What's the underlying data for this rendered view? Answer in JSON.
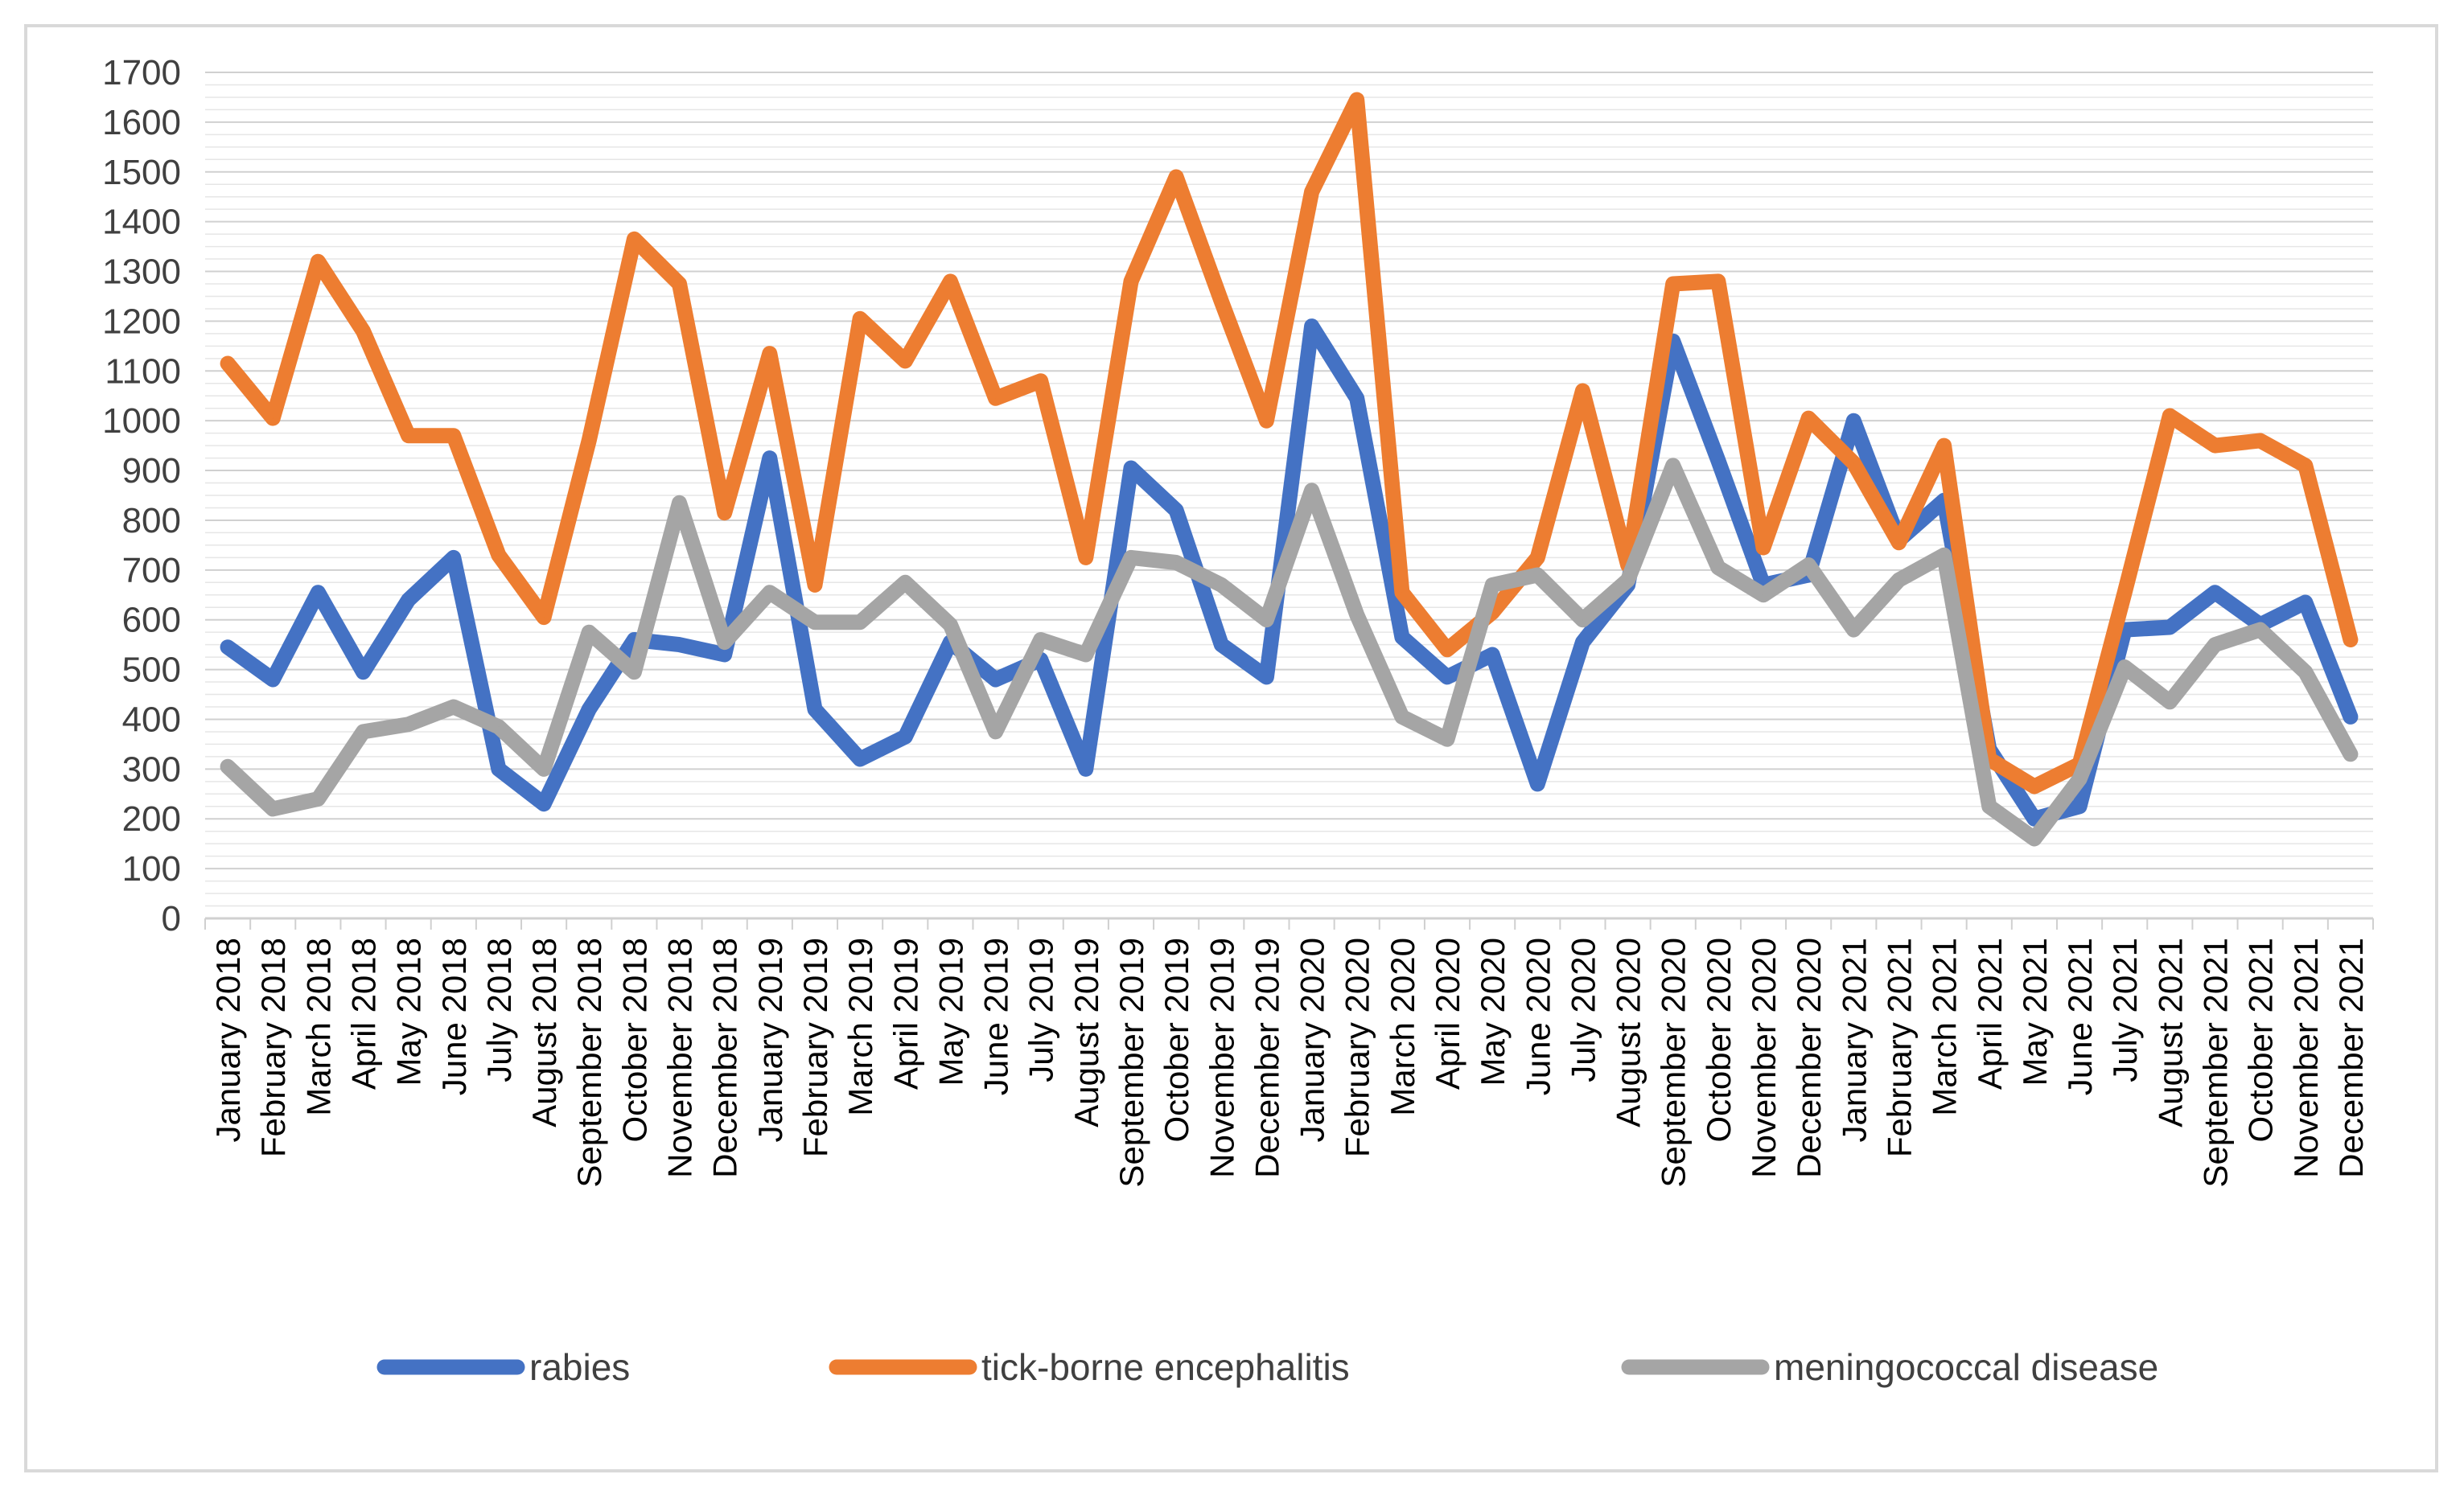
{
  "chart_data": {
    "type": "line",
    "title": "",
    "xlabel": "",
    "ylabel": "",
    "ylim": [
      0,
      1700
    ],
    "ytick_step": 100,
    "minor_gridlines_per_step": 4,
    "legend_position": "bottom",
    "categories": [
      "January 2018",
      "February 2018",
      "March 2018",
      "April 2018",
      "May 2018",
      "June 2018",
      "July 2018",
      "August 2018",
      "September 2018",
      "October 2018",
      "November 2018",
      "December 2018",
      "January 2019",
      "February 2019",
      "March 2019",
      "April 2019",
      "May 2019",
      "June 2019",
      "July 2019",
      "August 2019",
      "September 2019",
      "October 2019",
      "November 2019",
      "December 2019",
      "January 2020",
      "February 2020",
      "March 2020",
      "April 2020",
      "May 2020",
      "June 2020",
      "July 2020",
      "August 2020",
      "September 2020",
      "October 2020",
      "November 2020",
      "December 2020",
      "January 2021",
      "February 2021",
      "March 2021",
      "April 2021",
      "May 2021",
      "June 2021",
      "July 2021",
      "August 2021",
      "September 2021",
      "October 2021",
      "November 2021",
      "December 2021"
    ],
    "series": [
      {
        "name": "rabies",
        "color": "#4472c4",
        "values": [
          545,
          480,
          655,
          495,
          640,
          725,
          300,
          230,
          420,
          560,
          550,
          530,
          925,
          420,
          320,
          365,
          555,
          480,
          520,
          300,
          905,
          820,
          550,
          485,
          1190,
          1045,
          565,
          485,
          530,
          270,
          555,
          670,
          1160,
          920,
          670,
          690,
          1000,
          760,
          840,
          340,
          200,
          225,
          580,
          585,
          655,
          590,
          635,
          405
        ]
      },
      {
        "name": "tick-borne encephalitis",
        "color": "#ed7d31",
        "values": [
          1115,
          1005,
          1320,
          1180,
          970,
          970,
          730,
          605,
          960,
          1365,
          1275,
          815,
          1135,
          670,
          1205,
          1120,
          1280,
          1045,
          1080,
          725,
          1280,
          1490,
          1240,
          1000,
          1460,
          1645,
          655,
          540,
          615,
          725,
          1060,
          710,
          1275,
          1280,
          745,
          1005,
          915,
          755,
          950,
          320,
          265,
          310,
          655,
          1010,
          950,
          960,
          910,
          560
        ]
      },
      {
        "name": "meningococcal disease",
        "color": "#a5a5a5",
        "values": [
          305,
          220,
          240,
          375,
          390,
          425,
          385,
          300,
          575,
          495,
          835,
          555,
          655,
          595,
          595,
          675,
          590,
          375,
          560,
          530,
          725,
          715,
          670,
          600,
          860,
          610,
          405,
          360,
          670,
          690,
          600,
          680,
          910,
          705,
          650,
          710,
          580,
          680,
          730,
          225,
          160,
          280,
          505,
          435,
          550,
          580,
          495,
          330
        ]
      }
    ]
  }
}
